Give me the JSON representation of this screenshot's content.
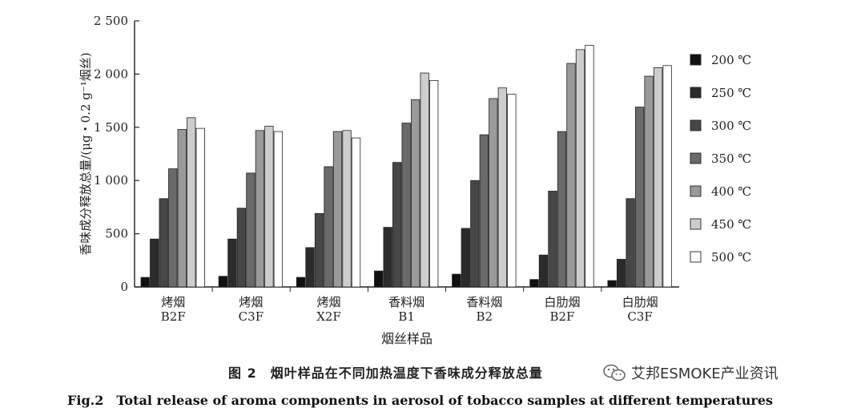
{
  "chart_data": {
    "type": "bar",
    "ylabel": "香味成分释放总量/(μg・0.2 g⁻¹烟丝)",
    "xlabel": "烟丝样品",
    "ylim": [
      0,
      2500
    ],
    "yticks": [
      0,
      500,
      1000,
      1500,
      2000,
      2500
    ],
    "ytick_labels": [
      "0",
      "500",
      "1 000",
      "1 500",
      "2 000",
      "2 500"
    ],
    "categories": [
      [
        "烤烟",
        "B2F"
      ],
      [
        "烤烟",
        "C3F"
      ],
      [
        "烤烟",
        "X2F"
      ],
      [
        "香料烟",
        "B1"
      ],
      [
        "香料烟",
        "B2"
      ],
      [
        "白肋烟",
        "B2F"
      ],
      [
        "白肋烟",
        "C3F"
      ]
    ],
    "legend_position": "right",
    "series": [
      {
        "name": "200 ℃",
        "color": "#111111",
        "values": [
          90,
          100,
          90,
          150,
          120,
          70,
          60
        ]
      },
      {
        "name": "250 ℃",
        "color": "#2b2b2b",
        "values": [
          450,
          450,
          370,
          560,
          550,
          300,
          260
        ]
      },
      {
        "name": "300 ℃",
        "color": "#474747",
        "values": [
          830,
          740,
          690,
          1170,
          1000,
          900,
          830
        ]
      },
      {
        "name": "350 ℃",
        "color": "#6a6a6a",
        "values": [
          1110,
          1070,
          1130,
          1540,
          1430,
          1460,
          1690
        ]
      },
      {
        "name": "400 ℃",
        "color": "#9a9a9a",
        "values": [
          1480,
          1470,
          1460,
          1760,
          1770,
          2100,
          1980
        ]
      },
      {
        "name": "450 ℃",
        "color": "#cdcdcd",
        "values": [
          1590,
          1510,
          1470,
          2010,
          1870,
          2230,
          2060
        ]
      },
      {
        "name": "500 ℃",
        "color": "#ffffff",
        "values": [
          1490,
          1460,
          1400,
          1940,
          1810,
          2270,
          2080
        ]
      }
    ]
  },
  "caption": {
    "cn": "图 2　烟叶样品在不同加热温度下香味成分释放总量",
    "en": "Fig.2　Total release of aroma components in aerosol of tobacco samples at different temperatures"
  },
  "watermark": {
    "text": "艾邦ESMOKE产业资讯",
    "icon": "wechat-icon"
  }
}
